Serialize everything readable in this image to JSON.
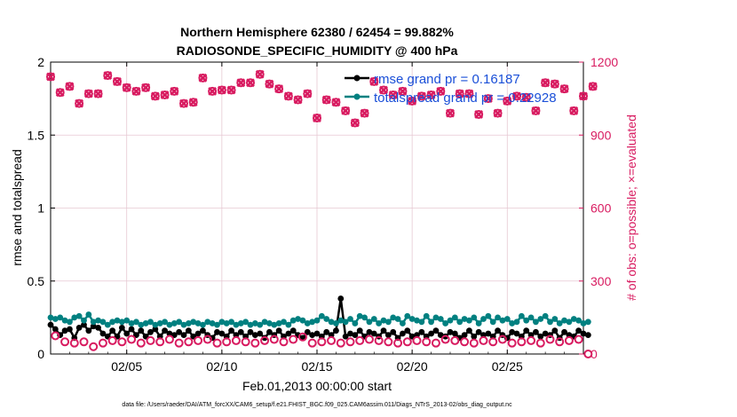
{
  "chart_data": {
    "type": "line",
    "title_line1": "Northern Hemisphere 62380 / 62454 = 99.882%",
    "title_line2": "RADIOSONDE_SPECIFIC_HUMIDITY @ 400 hPa",
    "xlabel": "Feb.01,2013 00:00:00 start",
    "ylabel_left": "rmse and totalspread",
    "ylabel_right": "# of obs: o=possible; ×=evaluated",
    "datafile": "data file: /Users/raeder/DAI/ATM_forcXX/CAM6_setup/f.e21.FHIST_BGC.f09_025.CAM6assim.011/Diags_NTrS_2013-02/obs_diag_output.nc",
    "xlim": [
      1,
      29
    ],
    "ylim_left": [
      0,
      2
    ],
    "ylim_right": [
      0,
      1200
    ],
    "x_ticks": [
      5,
      10,
      15,
      20,
      25
    ],
    "x_tick_labels": [
      "02/05",
      "02/10",
      "02/15",
      "02/20",
      "02/25"
    ],
    "y_left_ticks": [
      0,
      0.5,
      1,
      1.5,
      2
    ],
    "y_left_tick_labels": [
      "0",
      "0.5",
      "1",
      "1.5",
      "2"
    ],
    "y_right_ticks": [
      0,
      300,
      600,
      900,
      1200
    ],
    "y_right_tick_labels": [
      "0",
      "300",
      "600",
      "900",
      "1200"
    ],
    "grid": true,
    "legend": {
      "position": "top-right",
      "entries": [
        {
          "label": "rmse grand pr = 0.16187",
          "color": "#000000"
        },
        {
          "label": "totalspread grand pr = 0.22928",
          "color": "#008080"
        }
      ]
    },
    "series": [
      {
        "name": "rmse",
        "color": "#000000",
        "axis": "left",
        "x_start": 1.0,
        "x_step": 0.25,
        "values": [
          0.2,
          0.17,
          0.13,
          0.16,
          0.17,
          0.11,
          0.18,
          0.2,
          0.16,
          0.19,
          0.18,
          0.14,
          0.12,
          0.16,
          0.12,
          0.18,
          0.14,
          0.17,
          0.13,
          0.16,
          0.12,
          0.15,
          0.17,
          0.12,
          0.16,
          0.14,
          0.13,
          0.15,
          0.13,
          0.16,
          0.12,
          0.14,
          0.16,
          0.13,
          0.11,
          0.15,
          0.14,
          0.12,
          0.16,
          0.13,
          0.15,
          0.12,
          0.15,
          0.13,
          0.14,
          0.11,
          0.15,
          0.13,
          0.16,
          0.12,
          0.14,
          0.16,
          0.13,
          0.11,
          0.15,
          0.13,
          0.14,
          0.12,
          0.15,
          0.13,
          0.16,
          0.38,
          0.12,
          0.14,
          0.13,
          0.16,
          0.12,
          0.15,
          0.14,
          0.12,
          0.16,
          0.13,
          0.15,
          0.11,
          0.14,
          0.16,
          0.12,
          0.13,
          0.15,
          0.12,
          0.14,
          0.16,
          0.13,
          0.12,
          0.15,
          0.14,
          0.11,
          0.13,
          0.16,
          0.12,
          0.15,
          0.13,
          0.14,
          0.12,
          0.16,
          0.13,
          0.11,
          0.15,
          0.14,
          0.12,
          0.16,
          0.13,
          0.15,
          0.12,
          0.14,
          0.13,
          0.16,
          0.11,
          0.15,
          0.13,
          0.12,
          0.16,
          0.14,
          0.13
        ]
      },
      {
        "name": "totalspread",
        "color": "#008080",
        "axis": "left",
        "x_start": 1.0,
        "x_step": 0.25,
        "values": [
          0.25,
          0.24,
          0.25,
          0.23,
          0.22,
          0.25,
          0.26,
          0.23,
          0.27,
          0.22,
          0.23,
          0.22,
          0.2,
          0.22,
          0.23,
          0.22,
          0.23,
          0.21,
          0.22,
          0.2,
          0.21,
          0.22,
          0.2,
          0.21,
          0.22,
          0.2,
          0.21,
          0.22,
          0.2,
          0.21,
          0.22,
          0.21,
          0.2,
          0.22,
          0.21,
          0.2,
          0.22,
          0.21,
          0.22,
          0.2,
          0.21,
          0.22,
          0.2,
          0.21,
          0.2,
          0.22,
          0.21,
          0.2,
          0.21,
          0.22,
          0.2,
          0.23,
          0.24,
          0.23,
          0.21,
          0.22,
          0.23,
          0.26,
          0.24,
          0.22,
          0.21,
          0.23,
          0.22,
          0.24,
          0.21,
          0.26,
          0.25,
          0.22,
          0.24,
          0.21,
          0.23,
          0.22,
          0.25,
          0.24,
          0.21,
          0.26,
          0.24,
          0.23,
          0.22,
          0.26,
          0.22,
          0.25,
          0.24,
          0.21,
          0.23,
          0.25,
          0.22,
          0.24,
          0.23,
          0.25,
          0.21,
          0.24,
          0.26,
          0.22,
          0.25,
          0.23,
          0.24,
          0.21,
          0.22,
          0.26,
          0.23,
          0.25,
          0.22,
          0.24,
          0.26,
          0.22,
          0.24,
          0.21,
          0.23,
          0.22,
          0.24,
          0.23,
          0.21,
          0.22
        ]
      },
      {
        "name": "# obs possible",
        "color": "#d81b60",
        "axis": "right",
        "marker": "circle",
        "x_start": 1.0,
        "x_step": 0.5,
        "values": [
          1140,
          1075,
          1100,
          1030,
          1070,
          1070,
          1145,
          1120,
          1095,
          1080,
          1095,
          1060,
          1065,
          1080,
          1030,
          1035,
          1135,
          1080,
          1085,
          1085,
          1115,
          1115,
          1150,
          1110,
          1090,
          1060,
          1045,
          1070,
          970,
          1045,
          1035,
          1000,
          950,
          990,
          1120,
          1085,
          1065,
          1080,
          1040,
          1060,
          1065,
          1080,
          990,
          1070,
          1070,
          985,
          1050,
          990,
          1040,
          1060,
          1055,
          1000,
          1115,
          1110,
          1090,
          1000,
          1060,
          1100
        ]
      },
      {
        "name": "# obs evaluated",
        "color": "#d81b60",
        "axis": "right",
        "marker": "x",
        "x_start": 1.0,
        "x_step": 0.5,
        "values": [
          1140,
          1075,
          1100,
          1030,
          1070,
          1070,
          1145,
          1120,
          1095,
          1080,
          1095,
          1060,
          1065,
          1080,
          1030,
          1035,
          1135,
          1080,
          1085,
          1085,
          1115,
          1115,
          1150,
          1110,
          1090,
          1060,
          1045,
          1070,
          970,
          1045,
          1035,
          1000,
          950,
          990,
          1120,
          1085,
          1065,
          1080,
          1040,
          1060,
          1065,
          1080,
          990,
          1070,
          1070,
          985,
          1050,
          990,
          1040,
          1060,
          1055,
          1000,
          1115,
          1110,
          1090,
          1000,
          1060,
          1100
        ]
      },
      {
        "name": "# obs possible (low cycles)",
        "color": "#d81b60",
        "axis": "right",
        "marker": "circle",
        "x_start": 1.25,
        "x_step": 0.5,
        "values": [
          75,
          50,
          45,
          50,
          30,
          45,
          55,
          50,
          60,
          45,
          55,
          50,
          60,
          45,
          50,
          55,
          60,
          45,
          50,
          55,
          50,
          45,
          55,
          60,
          50,
          60,
          70,
          45,
          50,
          55,
          45,
          50,
          55,
          60,
          55,
          50,
          45,
          50,
          55,
          50,
          45,
          60,
          55,
          50,
          45,
          55,
          50,
          60,
          45,
          50,
          55,
          45,
          60,
          50,
          55,
          60,
          0
        ]
      }
    ]
  }
}
